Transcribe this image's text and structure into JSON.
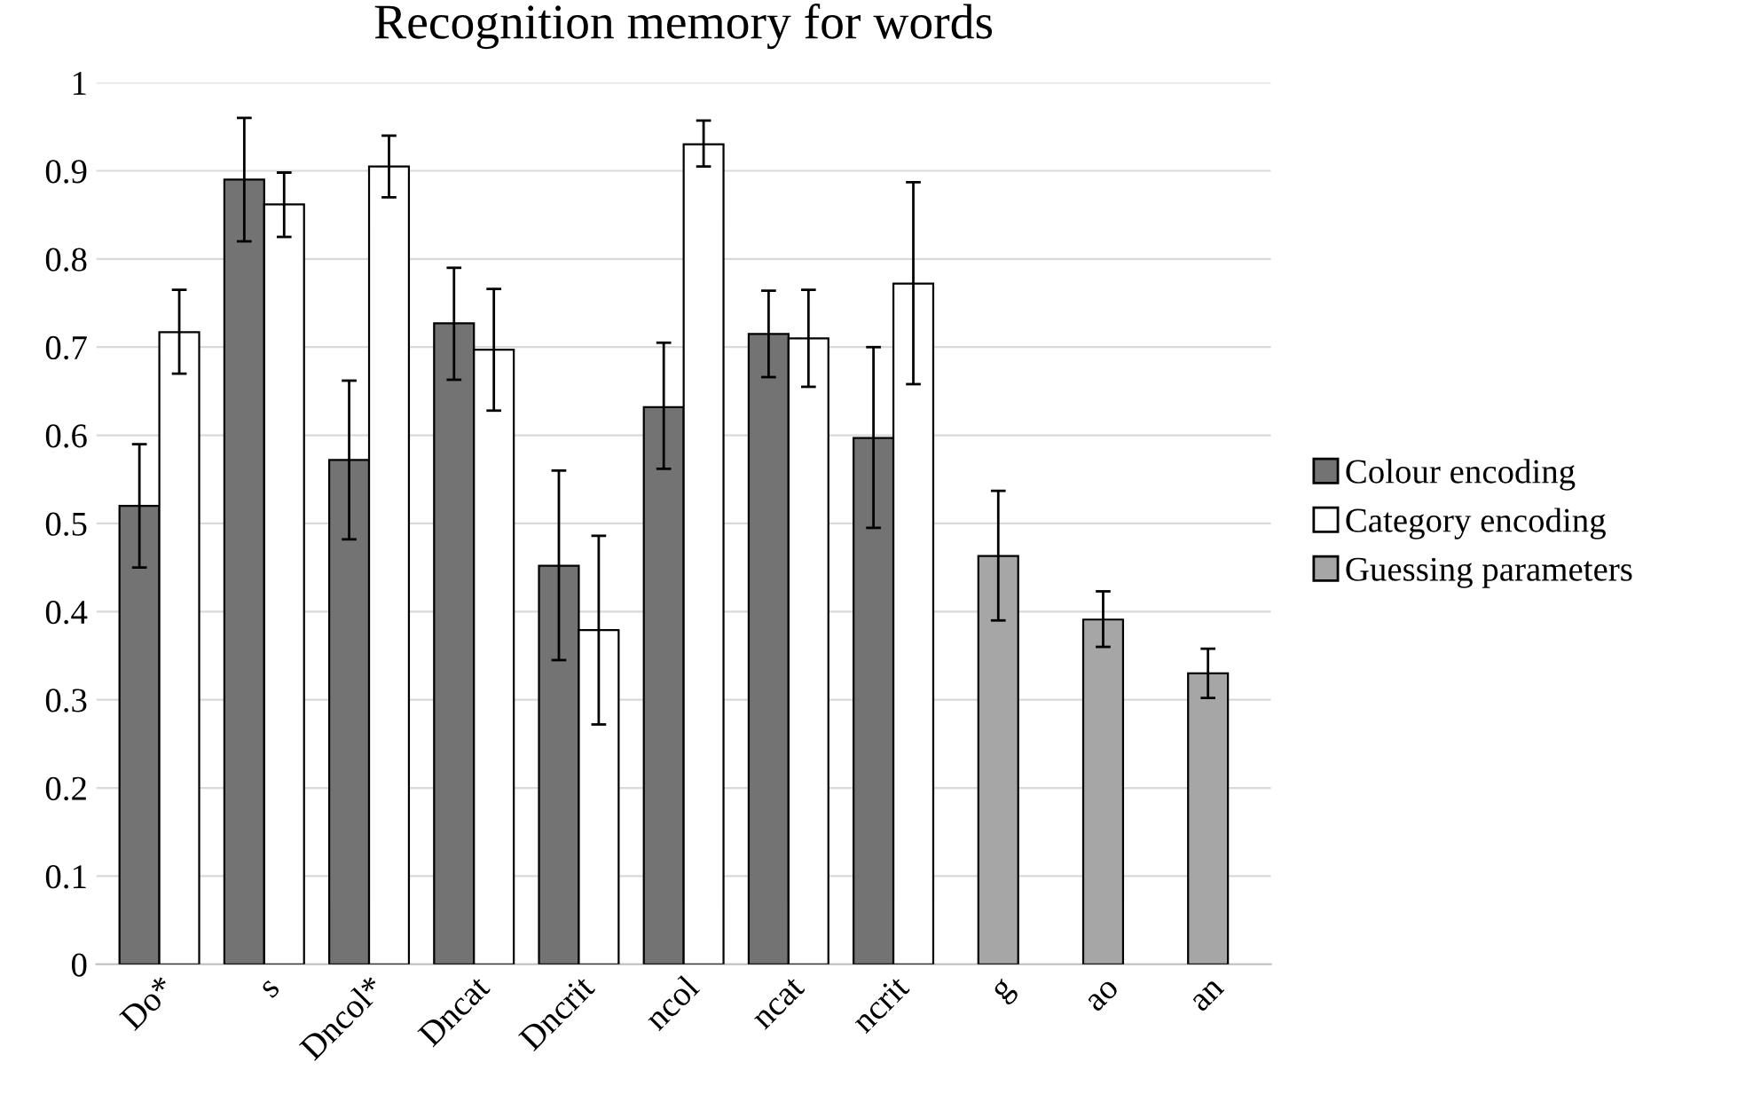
{
  "chart_data": {
    "type": "bar",
    "title": "Recognition memory for words",
    "categories": [
      "Do*",
      "s",
      "Dncol*",
      "Dncat",
      "Dncrit",
      "ncol",
      "ncat",
      "ncrit",
      "g",
      "ao",
      "an"
    ],
    "series": [
      {
        "name": "Colour encoding",
        "color": "#737373",
        "values": [
          0.52,
          0.89,
          0.572,
          0.727,
          0.452,
          0.632,
          0.715,
          0.597,
          null,
          null,
          null
        ],
        "errors": [
          [
            0.45,
            0.59
          ],
          [
            0.82,
            0.96
          ],
          [
            0.482,
            0.662
          ],
          [
            0.663,
            0.79
          ],
          [
            0.345,
            0.56
          ],
          [
            0.562,
            0.705
          ],
          [
            0.666,
            0.764
          ],
          [
            0.495,
            0.7
          ],
          null,
          null,
          null
        ]
      },
      {
        "name": "Category encoding",
        "color": "#ffffff",
        "values": [
          0.717,
          0.862,
          0.905,
          0.697,
          0.379,
          0.93,
          0.71,
          0.772,
          null,
          null,
          null
        ],
        "errors": [
          [
            0.67,
            0.765
          ],
          [
            0.825,
            0.898
          ],
          [
            0.87,
            0.94
          ],
          [
            0.628,
            0.766
          ],
          [
            0.272,
            0.486
          ],
          [
            0.905,
            0.957
          ],
          [
            0.655,
            0.765
          ],
          [
            0.658,
            0.887
          ],
          null,
          null,
          null
        ]
      },
      {
        "name": "Guessing parameters",
        "color": "#a6a6a6",
        "values": [
          null,
          null,
          null,
          null,
          null,
          null,
          null,
          null,
          0.463,
          0.391,
          0.33
        ],
        "errors": [
          null,
          null,
          null,
          null,
          null,
          null,
          null,
          null,
          [
            0.39,
            0.537
          ],
          [
            0.36,
            0.423
          ],
          [
            0.302,
            0.358
          ]
        ]
      }
    ],
    "ylim": [
      0,
      1
    ],
    "yticks": [
      0,
      0.1,
      0.2,
      0.3,
      0.4,
      0.5,
      0.6,
      0.7,
      0.8,
      0.9,
      1
    ],
    "grid": "y",
    "legend": "right"
  }
}
